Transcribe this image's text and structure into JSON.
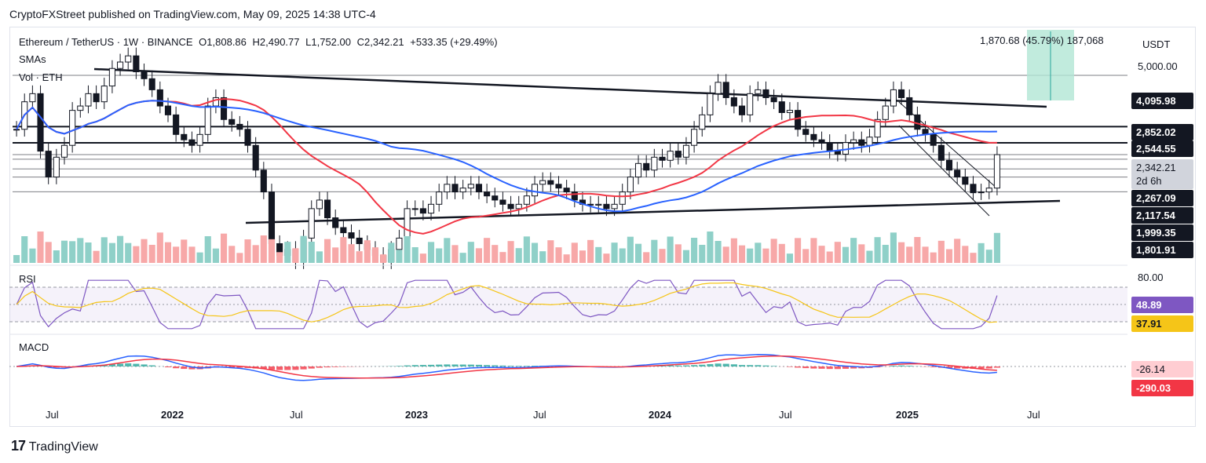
{
  "header": {
    "publisher_line": "CryptoFXStreet published on TradingView.com, May 09, 2025 14:38 UTC-4"
  },
  "legend": {
    "symbol_line": "Ethereum / TetherUS · 1W · BINANCE",
    "ohlc": {
      "open": "O1,808.86",
      "high": "H2,490.77",
      "low": "L1,752.00",
      "close": "C2,342.21",
      "change": "+533.35 (+29.49%)"
    },
    "sma_label": "SMAs",
    "vol_label": "Vol · ETH"
  },
  "measure": {
    "text": "1,870.68 (45.79%) 187,068"
  },
  "currency": "USDT",
  "price_axis": {
    "top_label": "5,000.00",
    "tags": [
      {
        "label": "4,095.98",
        "style": "dark"
      },
      {
        "label": "2,852.02",
        "style": "dark"
      },
      {
        "label": "2,544.55",
        "style": "dark"
      },
      {
        "label": "2,342.21",
        "style": "current"
      },
      {
        "label": "2d 6h",
        "style": "current-sub"
      },
      {
        "label": "2,267.09",
        "style": "dark"
      },
      {
        "label": "2,117.54",
        "style": "dark"
      },
      {
        "label": "1,999.35",
        "style": "dark"
      },
      {
        "label": "1,801.91",
        "style": "dark"
      }
    ]
  },
  "rsi_panel": {
    "label": "RSI",
    "axis_label": "80.00",
    "rsi_value": "48.89",
    "rsi_ma_value": "37.91",
    "colors": {
      "rsi": "#7e57c2",
      "ma": "#f5c518"
    }
  },
  "macd_panel": {
    "label": "MACD",
    "hist_value": "-26.14",
    "signal_value": "-290.03",
    "colors": {
      "macd": "#2962ff",
      "signal": "#f23645"
    }
  },
  "time_axis": [
    "Jul",
    "2022",
    "Jul",
    "2023",
    "Jul",
    "2024",
    "Jul",
    "2025",
    "Jul"
  ],
  "footer": {
    "brand": "TradingView",
    "logo_text": "17"
  },
  "colors": {
    "bull": "#131722",
    "bear": "#131722",
    "sma_fast": "#f23645",
    "sma_slow": "#2962ff",
    "vol_up": "#8fd0c8",
    "vol_down": "#f7a8a8",
    "measure_fill": "#b2e6d4",
    "measure_line": "#26a69a"
  },
  "chart_data": {
    "type": "candlestick",
    "title": "Ethereum / TetherUS · 1W · BINANCE",
    "ylabel": "USDT",
    "ylim": [
      1400,
      5000
    ],
    "start": "2021-05",
    "interval": "1W",
    "closes": [
      2800,
      3400,
      3600,
      2400,
      2000,
      2300,
      2500,
      3200,
      3300,
      3600,
      3400,
      3800,
      4300,
      4500,
      4700,
      4200,
      4000,
      3700,
      3300,
      3100,
      2700,
      2600,
      2500,
      2700,
      3300,
      3500,
      3000,
      2900,
      2800,
      2500,
      2100,
      1800,
      1250,
      1150,
      1200,
      1100,
      1300,
      1600,
      1700,
      1500,
      1400,
      1350,
      1300,
      1250,
      1200,
      1150,
      1100,
      1200,
      1300,
      1600,
      1600,
      1550,
      1650,
      1800,
      1900,
      1800,
      1850,
      1900,
      1800,
      1750,
      1700,
      1650,
      1600,
      1650,
      1750,
      1900,
      1950,
      1900,
      1850,
      1800,
      1700,
      1650,
      1640,
      1650,
      1600,
      1650,
      1800,
      2000,
      2200,
      2100,
      2300,
      2250,
      2400,
      2300,
      2500,
      2800,
      3100,
      3600,
      3900,
      3500,
      3300,
      3100,
      3600,
      3700,
      3500,
      3400,
      3150,
      3200,
      2800,
      2700,
      2600,
      2550,
      2400,
      2350,
      2550,
      2600,
      2500,
      2650,
      3000,
      3300,
      3700,
      3500,
      3100,
      2800,
      2700,
      2500,
      2250,
      2100,
      2000,
      1900,
      1790,
      1800,
      1850,
      2342
    ],
    "volume": {
      "ylabel": "Vol · ETH"
    },
    "sma_fast_label": "SMA (red)",
    "sma_slow_label": "SMA (blue)",
    "key_levels": [
      4095.98,
      2852.02,
      2544.55,
      2342.21,
      2267.09,
      2117.54,
      1999.35,
      1801.91
    ],
    "rsi": {
      "latest": 48.89,
      "ma_latest": 37.91,
      "upper_band": 70,
      "lower_band": 30
    },
    "macd": {
      "hist_latest": -26.14,
      "signal_latest": -290.03
    }
  }
}
